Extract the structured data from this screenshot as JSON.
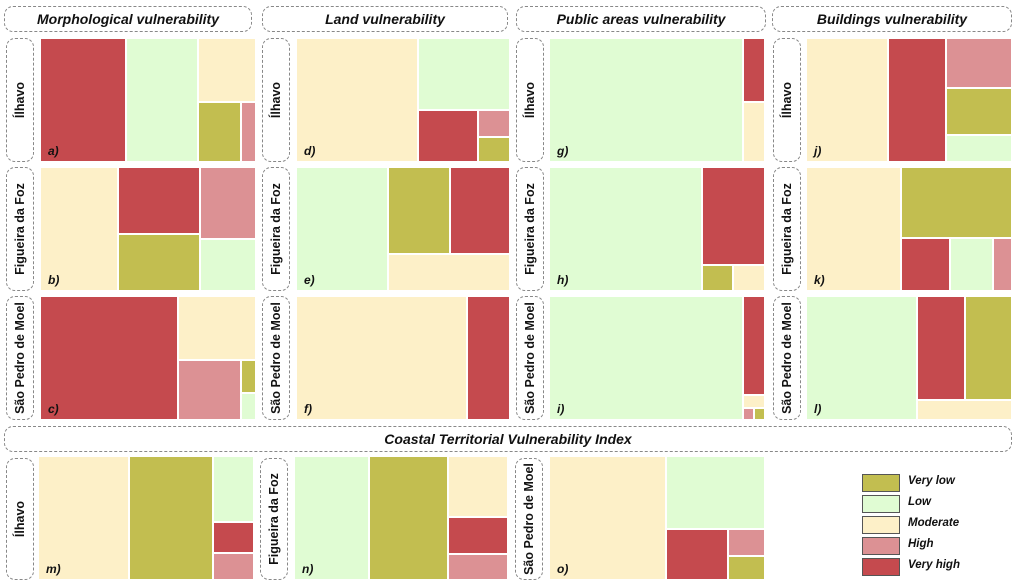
{
  "colors": {
    "very_low": "#c2be50",
    "low": "#e0fcd3",
    "moderate": "#fdf0c8",
    "high": "#dc9194",
    "very_high": "#c54a4e"
  },
  "headers": {
    "morphological": "Morphological vulnerability",
    "land": "Land vulnerability",
    "public": "Public areas vulnerability",
    "buildings": "Buildings vulnerability",
    "ctvi": "Coastal Territorial Vulnerability Index"
  },
  "locations": {
    "ilhavo": "Ílhavo",
    "figueira": "Figueira da Foz",
    "sao_pedro": "São Pedro de Moel"
  },
  "legend": [
    {
      "key": "very_low",
      "label": "Very low"
    },
    {
      "key": "low",
      "label": "Low"
    },
    {
      "key": "moderate",
      "label": "Moderate"
    },
    {
      "key": "high",
      "label": "High"
    },
    {
      "key": "very_high",
      "label": "Very high"
    }
  ],
  "chart_data": {
    "type": "treemap",
    "panels": [
      {
        "label": "a)",
        "location": "Ílhavo",
        "indicator": "Morphological vulnerability",
        "tiles": [
          {
            "class": "very_high",
            "x0": 0,
            "y0": 0,
            "x1": 0.4,
            "y1": 1
          },
          {
            "class": "low",
            "x0": 0.4,
            "y0": 0,
            "x1": 0.73,
            "y1": 1
          },
          {
            "class": "moderate",
            "x0": 0.73,
            "y0": 0,
            "x1": 1,
            "y1": 0.52
          },
          {
            "class": "very_low",
            "x0": 0.73,
            "y0": 0.52,
            "x1": 0.93,
            "y1": 1
          },
          {
            "class": "high",
            "x0": 0.93,
            "y0": 0.52,
            "x1": 1,
            "y1": 1
          }
        ]
      },
      {
        "label": "b)",
        "location": "Figueira da Foz",
        "indicator": "Morphological vulnerability",
        "tiles": [
          {
            "class": "moderate",
            "x0": 0,
            "y0": 0,
            "x1": 0.36,
            "y1": 1
          },
          {
            "class": "very_high",
            "x0": 0.36,
            "y0": 0,
            "x1": 0.74,
            "y1": 0.54
          },
          {
            "class": "very_low",
            "x0": 0.36,
            "y0": 0.54,
            "x1": 0.74,
            "y1": 1
          },
          {
            "class": "high",
            "x0": 0.74,
            "y0": 0,
            "x1": 1,
            "y1": 0.58
          },
          {
            "class": "low",
            "x0": 0.74,
            "y0": 0.58,
            "x1": 1,
            "y1": 1
          }
        ]
      },
      {
        "label": "c)",
        "location": "São Pedro de Moel",
        "indicator": "Morphological vulnerability",
        "tiles": [
          {
            "class": "very_high",
            "x0": 0,
            "y0": 0,
            "x1": 0.64,
            "y1": 1
          },
          {
            "class": "moderate",
            "x0": 0.64,
            "y0": 0,
            "x1": 1,
            "y1": 0.52
          },
          {
            "class": "high",
            "x0": 0.64,
            "y0": 0.52,
            "x1": 0.93,
            "y1": 1
          },
          {
            "class": "very_low",
            "x0": 0.93,
            "y0": 0.52,
            "x1": 1,
            "y1": 0.78
          },
          {
            "class": "low",
            "x0": 0.93,
            "y0": 0.78,
            "x1": 1,
            "y1": 1
          }
        ]
      },
      {
        "label": "d)",
        "location": "Ílhavo",
        "indicator": "Land vulnerability",
        "tiles": [
          {
            "class": "moderate",
            "x0": 0,
            "y0": 0,
            "x1": 0.57,
            "y1": 1
          },
          {
            "class": "low",
            "x0": 0.57,
            "y0": 0,
            "x1": 1,
            "y1": 0.58
          },
          {
            "class": "very_high",
            "x0": 0.57,
            "y0": 0.58,
            "x1": 0.85,
            "y1": 1
          },
          {
            "class": "high",
            "x0": 0.85,
            "y0": 0.58,
            "x1": 1,
            "y1": 0.8
          },
          {
            "class": "very_low",
            "x0": 0.85,
            "y0": 0.8,
            "x1": 1,
            "y1": 1
          }
        ]
      },
      {
        "label": "e)",
        "location": "Figueira da Foz",
        "indicator": "Land vulnerability",
        "tiles": [
          {
            "class": "low",
            "x0": 0,
            "y0": 0,
            "x1": 0.43,
            "y1": 1
          },
          {
            "class": "very_low",
            "x0": 0.43,
            "y0": 0,
            "x1": 0.72,
            "y1": 0.7
          },
          {
            "class": "very_high",
            "x0": 0.72,
            "y0": 0,
            "x1": 1,
            "y1": 0.7
          },
          {
            "class": "moderate",
            "x0": 0.43,
            "y0": 0.7,
            "x1": 1,
            "y1": 1
          }
        ]
      },
      {
        "label": "f)",
        "location": "São Pedro de Moel",
        "indicator": "Land vulnerability",
        "tiles": [
          {
            "class": "moderate",
            "x0": 0,
            "y0": 0,
            "x1": 0.8,
            "y1": 1
          },
          {
            "class": "very_high",
            "x0": 0.8,
            "y0": 0,
            "x1": 1,
            "y1": 1
          }
        ]
      },
      {
        "label": "g)",
        "location": "Ílhavo",
        "indicator": "Public areas vulnerability",
        "tiles": [
          {
            "class": "low",
            "x0": 0,
            "y0": 0,
            "x1": 0.9,
            "y1": 1
          },
          {
            "class": "very_high",
            "x0": 0.9,
            "y0": 0,
            "x1": 1,
            "y1": 0.52
          },
          {
            "class": "moderate",
            "x0": 0.9,
            "y0": 0.52,
            "x1": 1,
            "y1": 1
          }
        ]
      },
      {
        "label": "h)",
        "location": "Figueira da Foz",
        "indicator": "Public areas vulnerability",
        "tiles": [
          {
            "class": "low",
            "x0": 0,
            "y0": 0,
            "x1": 0.71,
            "y1": 1
          },
          {
            "class": "very_high",
            "x0": 0.71,
            "y0": 0,
            "x1": 1,
            "y1": 0.79
          },
          {
            "class": "very_low",
            "x0": 0.71,
            "y0": 0.79,
            "x1": 0.85,
            "y1": 1
          },
          {
            "class": "moderate",
            "x0": 0.85,
            "y0": 0.79,
            "x1": 1,
            "y1": 1
          }
        ]
      },
      {
        "label": "i)",
        "location": "São Pedro de Moel",
        "indicator": "Public areas vulnerability",
        "tiles": [
          {
            "class": "low",
            "x0": 0,
            "y0": 0,
            "x1": 0.9,
            "y1": 1
          },
          {
            "class": "very_high",
            "x0": 0.9,
            "y0": 0,
            "x1": 1,
            "y1": 0.8
          },
          {
            "class": "moderate",
            "x0": 0.9,
            "y0": 0.8,
            "x1": 1,
            "y1": 0.9
          },
          {
            "class": "high",
            "x0": 0.9,
            "y0": 0.9,
            "x1": 0.95,
            "y1": 1
          },
          {
            "class": "very_low",
            "x0": 0.95,
            "y0": 0.9,
            "x1": 1,
            "y1": 1
          }
        ]
      },
      {
        "label": "j)",
        "location": "Ílhavo",
        "indicator": "Buildings vulnerability",
        "tiles": [
          {
            "class": "moderate",
            "x0": 0,
            "y0": 0,
            "x1": 0.4,
            "y1": 1
          },
          {
            "class": "very_high",
            "x0": 0.4,
            "y0": 0,
            "x1": 0.68,
            "y1": 1
          },
          {
            "class": "high",
            "x0": 0.68,
            "y0": 0,
            "x1": 1,
            "y1": 0.4
          },
          {
            "class": "very_low",
            "x0": 0.68,
            "y0": 0.4,
            "x1": 1,
            "y1": 0.78
          },
          {
            "class": "low",
            "x0": 0.68,
            "y0": 0.78,
            "x1": 1,
            "y1": 1
          }
        ]
      },
      {
        "label": "k)",
        "location": "Figueira da Foz",
        "indicator": "Buildings vulnerability",
        "tiles": [
          {
            "class": "moderate",
            "x0": 0,
            "y0": 0,
            "x1": 0.46,
            "y1": 1
          },
          {
            "class": "very_low",
            "x0": 0.46,
            "y0": 0,
            "x1": 1,
            "y1": 0.57
          },
          {
            "class": "very_high",
            "x0": 0.46,
            "y0": 0.57,
            "x1": 0.7,
            "y1": 1
          },
          {
            "class": "low",
            "x0": 0.7,
            "y0": 0.57,
            "x1": 0.91,
            "y1": 1
          },
          {
            "class": "high",
            "x0": 0.91,
            "y0": 0.57,
            "x1": 1,
            "y1": 1
          }
        ]
      },
      {
        "label": "l)",
        "location": "São Pedro de Moel",
        "indicator": "Buildings vulnerability",
        "tiles": [
          {
            "class": "low",
            "x0": 0,
            "y0": 0,
            "x1": 0.54,
            "y1": 1
          },
          {
            "class": "very_high",
            "x0": 0.54,
            "y0": 0,
            "x1": 0.77,
            "y1": 0.84
          },
          {
            "class": "very_low",
            "x0": 0.77,
            "y0": 0,
            "x1": 1,
            "y1": 0.84
          },
          {
            "class": "moderate",
            "x0": 0.54,
            "y0": 0.84,
            "x1": 1,
            "y1": 1
          }
        ]
      },
      {
        "label": "m)",
        "location": "Ílhavo",
        "indicator": "Coastal Territorial Vulnerability Index",
        "tiles": [
          {
            "class": "moderate",
            "x0": 0,
            "y0": 0,
            "x1": 0.42,
            "y1": 1
          },
          {
            "class": "very_low",
            "x0": 0.42,
            "y0": 0,
            "x1": 0.81,
            "y1": 1
          },
          {
            "class": "low",
            "x0": 0.81,
            "y0": 0,
            "x1": 1,
            "y1": 0.53
          },
          {
            "class": "very_high",
            "x0": 0.81,
            "y0": 0.53,
            "x1": 1,
            "y1": 0.78
          },
          {
            "class": "high",
            "x0": 0.81,
            "y0": 0.78,
            "x1": 1,
            "y1": 1
          }
        ]
      },
      {
        "label": "n)",
        "location": "Figueira da Foz",
        "indicator": "Coastal Territorial Vulnerability Index",
        "tiles": [
          {
            "class": "low",
            "x0": 0,
            "y0": 0,
            "x1": 0.35,
            "y1": 1
          },
          {
            "class": "very_low",
            "x0": 0.35,
            "y0": 0,
            "x1": 0.72,
            "y1": 1
          },
          {
            "class": "moderate",
            "x0": 0.72,
            "y0": 0,
            "x1": 1,
            "y1": 0.49
          },
          {
            "class": "very_high",
            "x0": 0.72,
            "y0": 0.49,
            "x1": 1,
            "y1": 0.79
          },
          {
            "class": "high",
            "x0": 0.72,
            "y0": 0.79,
            "x1": 1,
            "y1": 1
          }
        ]
      },
      {
        "label": "o)",
        "location": "São Pedro de Moel",
        "indicator": "Coastal Territorial Vulnerability Index",
        "tiles": [
          {
            "class": "moderate",
            "x0": 0,
            "y0": 0,
            "x1": 0.54,
            "y1": 1
          },
          {
            "class": "low",
            "x0": 0.54,
            "y0": 0,
            "x1": 1,
            "y1": 0.59
          },
          {
            "class": "very_high",
            "x0": 0.54,
            "y0": 0.59,
            "x1": 0.83,
            "y1": 1
          },
          {
            "class": "high",
            "x0": 0.83,
            "y0": 0.59,
            "x1": 1,
            "y1": 0.81
          },
          {
            "class": "very_low",
            "x0": 0.83,
            "y0": 0.81,
            "x1": 1,
            "y1": 1
          }
        ]
      }
    ]
  }
}
